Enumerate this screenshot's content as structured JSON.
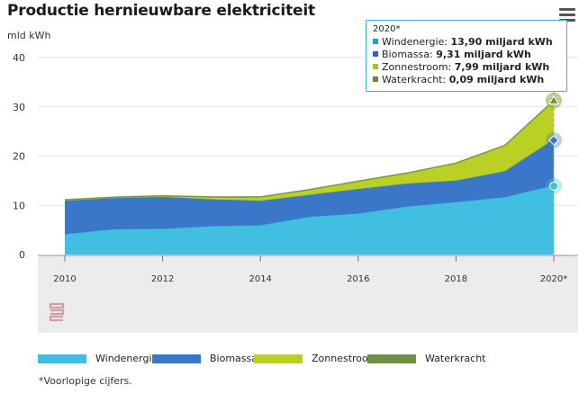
{
  "chart_data": {
    "type": "area",
    "stacked": true,
    "title": "Productie hernieuwbare elektriciteit",
    "ylabel": "mld kWh",
    "ylim": [
      0,
      40
    ],
    "yticks": [
      0,
      10,
      20,
      30,
      40
    ],
    "x": [
      "2010",
      "2011",
      "2012",
      "2013",
      "2014",
      "2015",
      "2016",
      "2017",
      "2018",
      "2019",
      "2020*"
    ],
    "xtick_labels": [
      "2010",
      "",
      "2012",
      "",
      "2014",
      "",
      "2016",
      "",
      "2018",
      "",
      "2020*"
    ],
    "grid": true,
    "legend_position": "bottom",
    "series": [
      {
        "name": "Windenergie",
        "color": "#40bfe0",
        "values": [
          4.0,
          5.0,
          5.1,
          5.6,
          5.8,
          7.5,
          8.2,
          9.6,
          10.5,
          11.5,
          13.9
        ]
      },
      {
        "name": "Biomassa",
        "color": "#3a77c8",
        "values": [
          7.0,
          6.5,
          6.5,
          5.5,
          5.0,
          4.5,
          5.0,
          4.7,
          4.4,
          5.3,
          9.31
        ]
      },
      {
        "name": "Zonnestroom",
        "color": "#bad025",
        "values": [
          0.05,
          0.1,
          0.25,
          0.5,
          0.8,
          1.1,
          1.6,
          2.2,
          3.6,
          5.3,
          7.99
        ]
      },
      {
        "name": "Waterkracht",
        "color": "#6e8f44",
        "values": [
          0.1,
          0.06,
          0.1,
          0.1,
          0.1,
          0.1,
          0.1,
          0.06,
          0.07,
          0.08,
          0.09
        ]
      }
    ]
  },
  "tooltip": {
    "header": "2020*",
    "rows": [
      {
        "label": "Windenergie:",
        "value": "13,90 miljard kWh",
        "color": "#1aa3cc"
      },
      {
        "label": "Biomassa:",
        "value": "9,31 miljard kWh",
        "color": "#2a66b8"
      },
      {
        "label": "Zonnestroom:",
        "value": "7,99 miljard kWh",
        "color": "#a8c31a"
      },
      {
        "label": "Waterkracht:",
        "value": "0,09 miljard kWh",
        "color": "#5e8a3c"
      }
    ]
  },
  "footnote": "*Voorlopige cijfers.",
  "menu_icon": "hamburger-icon",
  "logo_icon": "cbs-logo"
}
